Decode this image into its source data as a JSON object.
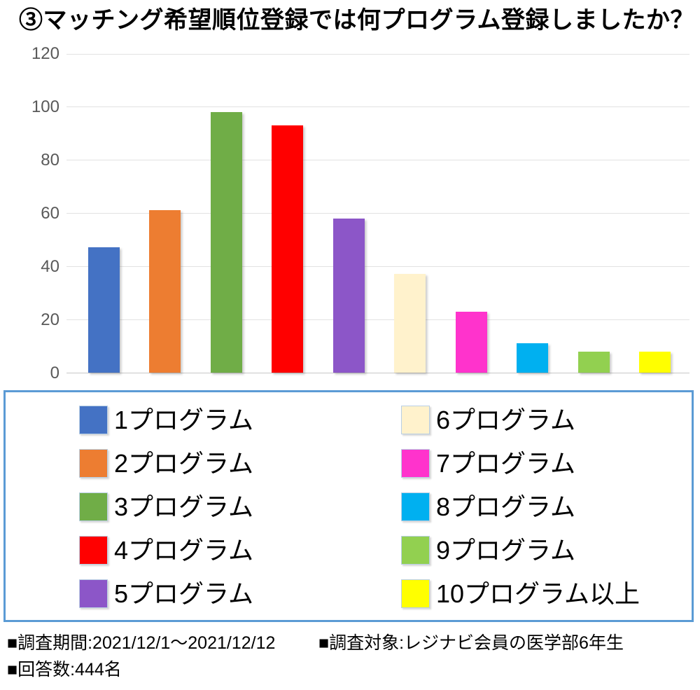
{
  "title": "③マッチング希望順位登録では何プログラム登録しましたか？",
  "chart_data": {
    "type": "bar",
    "title": "③マッチング希望順位登録では何プログラム登録しましたか？",
    "categories": [
      "1プログラム",
      "2プログラム",
      "3プログラム",
      "4プログラム",
      "5プログラム",
      "6プログラム",
      "7プログラム",
      "8プログラム",
      "9プログラム",
      "10プログラム以上"
    ],
    "values": [
      47,
      61,
      98,
      93,
      58,
      37,
      23,
      11,
      8,
      8
    ],
    "colors": [
      "#4472C4",
      "#ED7D31",
      "#70AD47",
      "#FF0000",
      "#8C56C8",
      "#FFF2CC",
      "#FF33CC",
      "#00B0F0",
      "#92D050",
      "#FFFF00"
    ],
    "xlabel": "",
    "ylabel": "",
    "ylim": [
      0,
      120
    ],
    "yticks": [
      0,
      20,
      40,
      60,
      80,
      100,
      120
    ],
    "grid": true,
    "legend_position": "bottom"
  },
  "legend": {
    "border_color": "#5B9BD5"
  },
  "footer": {
    "period": "■調査期間:2021/12/1～2021/12/12",
    "target": "■調査対象:レジナビ会員の医学部6年生",
    "responses": "■回答数:444名"
  },
  "style_colors": {
    "tick_label": "#595959",
    "gridline": "#E2E2E2",
    "axis_line": "#C7C7C7"
  }
}
